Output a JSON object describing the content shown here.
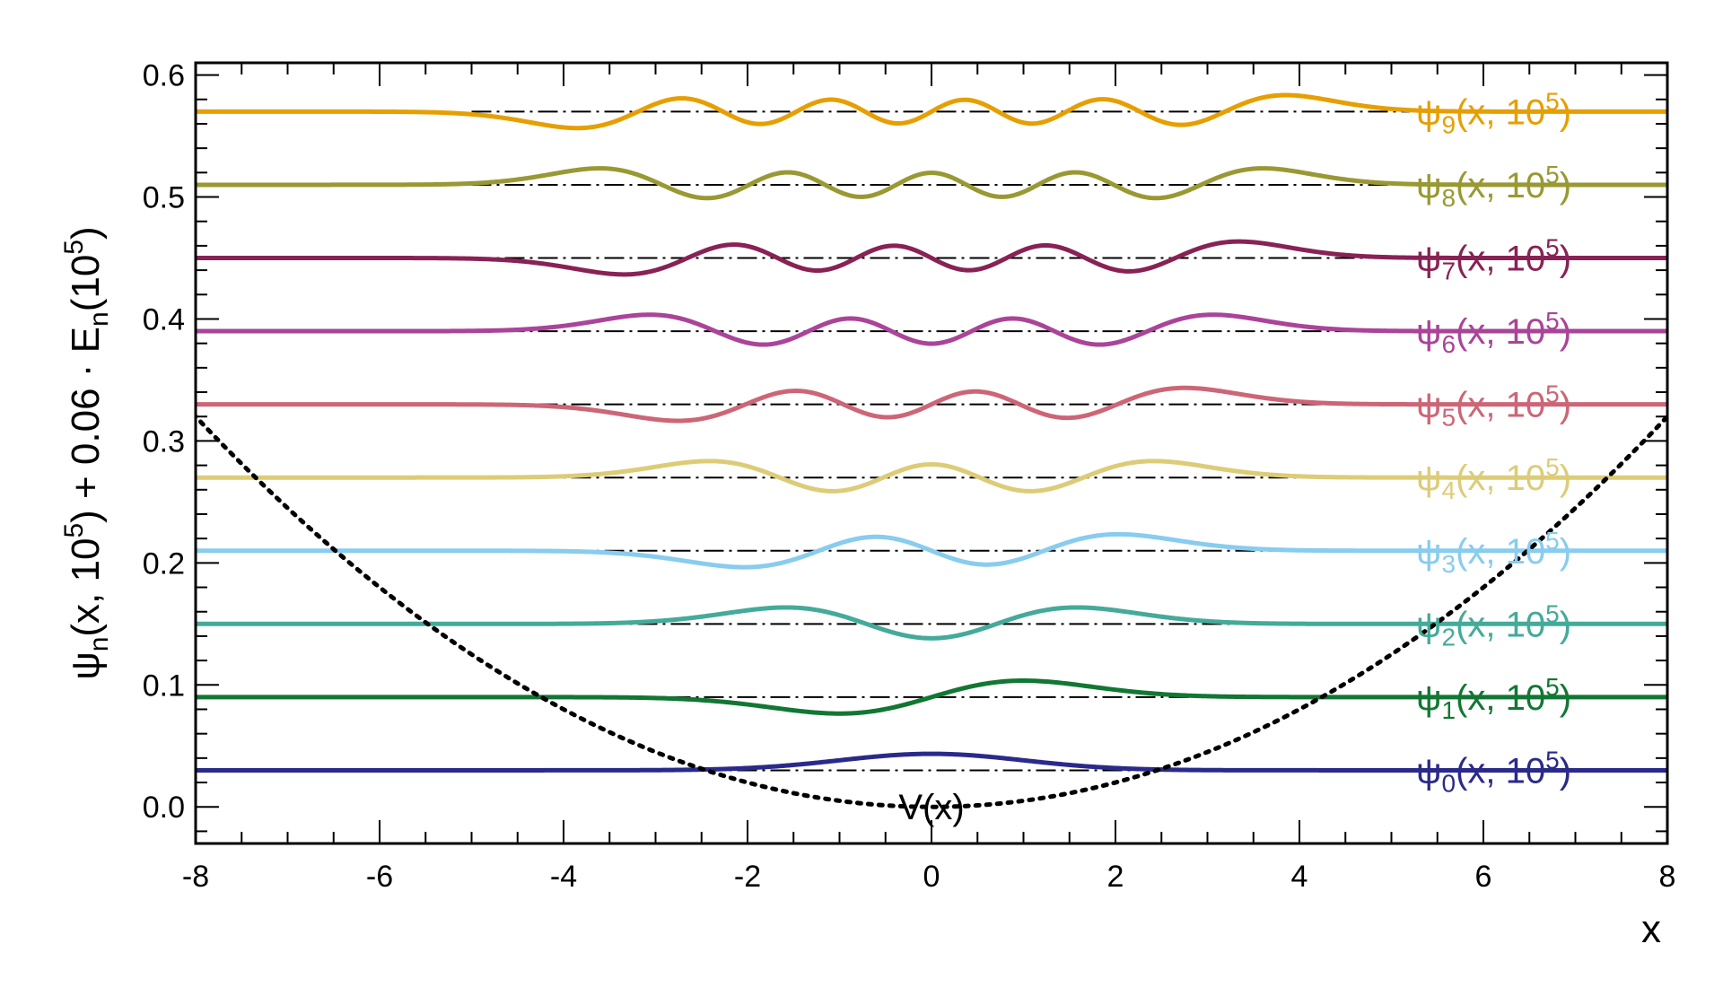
{
  "chart_data": {
    "type": "line",
    "title": "",
    "xlabel": "x",
    "ylabel": {
      "psi": "ψ",
      "n": "n",
      "mid1": "(x, 10",
      "exp1": "5",
      "mid2": ") + 0.06 · E",
      "n2": "n",
      "mid3": "(10",
      "exp2": "5",
      "end": ")"
    },
    "xlim": [
      -8,
      8
    ],
    "ylim": [
      -0.03,
      0.61
    ],
    "x_ticks": [
      -8,
      -6,
      -4,
      -2,
      0,
      2,
      4,
      6,
      8
    ],
    "x_tick_labels": [
      "-8",
      "-6",
      "-4",
      "-2",
      "0",
      "2",
      "4",
      "6",
      "8"
    ],
    "y_ticks": [
      0.0,
      0.1,
      0.2,
      0.3,
      0.4,
      0.5,
      0.6
    ],
    "y_tick_labels": [
      "0.0",
      "0.1",
      "0.2",
      "0.3",
      "0.4",
      "0.5",
      "0.6"
    ],
    "x_minor_step": 0.5,
    "y_minor_step": 0.02,
    "grid": false,
    "x_range_of_wavefunctions": [
      -8,
      8
    ],
    "potential": {
      "label": "V(x)",
      "style": "dotted",
      "color": "#000000",
      "form": "0.005 * x^2",
      "label_position_data": [
        0,
        0.0
      ]
    },
    "series": [
      {
        "name": "ψ",
        "sub": "0",
        "tail": "(x, 10",
        "exp": "5",
        "close": ")",
        "level": 0.03,
        "color": "#2a2a8a",
        "amplitude": 0.0135
      },
      {
        "name": "ψ",
        "sub": "1",
        "tail": "(x, 10",
        "exp": "5",
        "close": ")",
        "level": 0.09,
        "color": "#117733",
        "amplitude": 0.0135
      },
      {
        "name": "ψ",
        "sub": "2",
        "tail": "(x, 10",
        "exp": "5",
        "close": ")",
        "level": 0.15,
        "color": "#44aa99",
        "amplitude": 0.0135
      },
      {
        "name": "ψ",
        "sub": "3",
        "tail": "(x, 10",
        "exp": "5",
        "close": ")",
        "level": 0.21,
        "color": "#88ccee",
        "amplitude": 0.0135
      },
      {
        "name": "ψ",
        "sub": "4",
        "tail": "(x, 10",
        "exp": "5",
        "close": ")",
        "level": 0.27,
        "color": "#ddcc77",
        "amplitude": 0.0135
      },
      {
        "name": "ψ",
        "sub": "5",
        "tail": "(x, 10",
        "exp": "5",
        "close": ")",
        "level": 0.33,
        "color": "#cc6677",
        "amplitude": 0.0135
      },
      {
        "name": "ψ",
        "sub": "6",
        "tail": "(x, 10",
        "exp": "5",
        "close": ")",
        "level": 0.39,
        "color": "#aa4499",
        "amplitude": 0.0135
      },
      {
        "name": "ψ",
        "sub": "7",
        "tail": "(x, 10",
        "exp": "5",
        "close": ")",
        "level": 0.45,
        "color": "#882255",
        "amplitude": 0.0135
      },
      {
        "name": "ψ",
        "sub": "8",
        "tail": "(x, 10",
        "exp": "5",
        "close": ")",
        "level": 0.51,
        "color": "#999933",
        "amplitude": 0.0135
      },
      {
        "name": "ψ",
        "sub": "9",
        "tail": "(x, 10",
        "exp": "5",
        "close": ")",
        "level": 0.57,
        "color": "#e69f00",
        "amplitude": 0.0135
      }
    ],
    "energy_lines": {
      "style": "dash-dot",
      "color": "#000000"
    },
    "legend": "inline-right"
  }
}
